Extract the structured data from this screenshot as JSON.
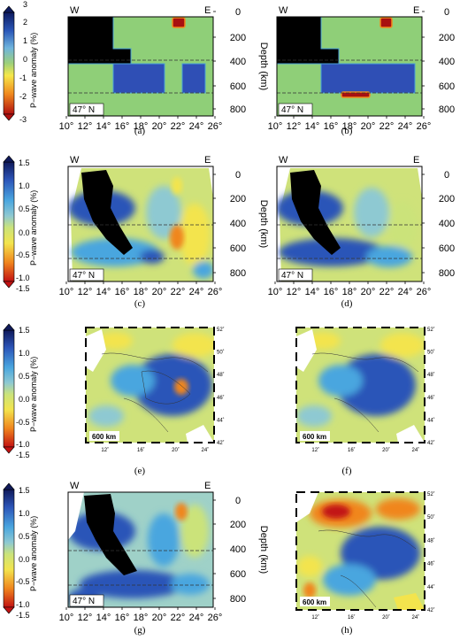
{
  "colorbars": [
    {
      "label": "P−wave anomaly (%)",
      "ticks": [
        "3",
        "2",
        "1",
        "0",
        "-1",
        "-2",
        "-3"
      ]
    },
    {
      "label": "P−wave anomaly (%)",
      "ticks": [
        "1.5",
        "1.0",
        "0.5",
        "0.0",
        "-0.5",
        "-1.0",
        "-1.5"
      ]
    },
    {
      "label": "P−wave anomaly (%)",
      "ticks": [
        "1.5",
        "1.0",
        "0.5",
        "0.0",
        "-0.5",
        "-1.0",
        "-1.5"
      ]
    },
    {
      "label": "P−wave anomaly (%)",
      "ticks": [
        "1.5",
        "1.0",
        "0.5",
        "0.0",
        "-0.5",
        "-1.0",
        "-1.5"
      ]
    }
  ],
  "section": {
    "west": "W",
    "east": "E",
    "lat_label": "47° N",
    "depth_label": "Depth (km)",
    "depth_ticks": [
      "0",
      "200",
      "400",
      "600",
      "800"
    ],
    "lon_ticks": [
      "10°",
      "12°",
      "14°",
      "16°",
      "18°",
      "20°",
      "22°",
      "24°",
      "26°"
    ]
  },
  "map": {
    "lat_ticks": [
      "52˚",
      "50˚",
      "48˚",
      "46˚",
      "44˚",
      "42˚"
    ],
    "lon_ticks": [
      "12˚",
      "16˚",
      "20˚",
      "24˚"
    ],
    "depth_badge": "600 km"
  },
  "captions": [
    "(a)",
    "(b)",
    "(c)",
    "(d)",
    "(e)",
    "(f)",
    "(g)",
    "(h)"
  ]
}
